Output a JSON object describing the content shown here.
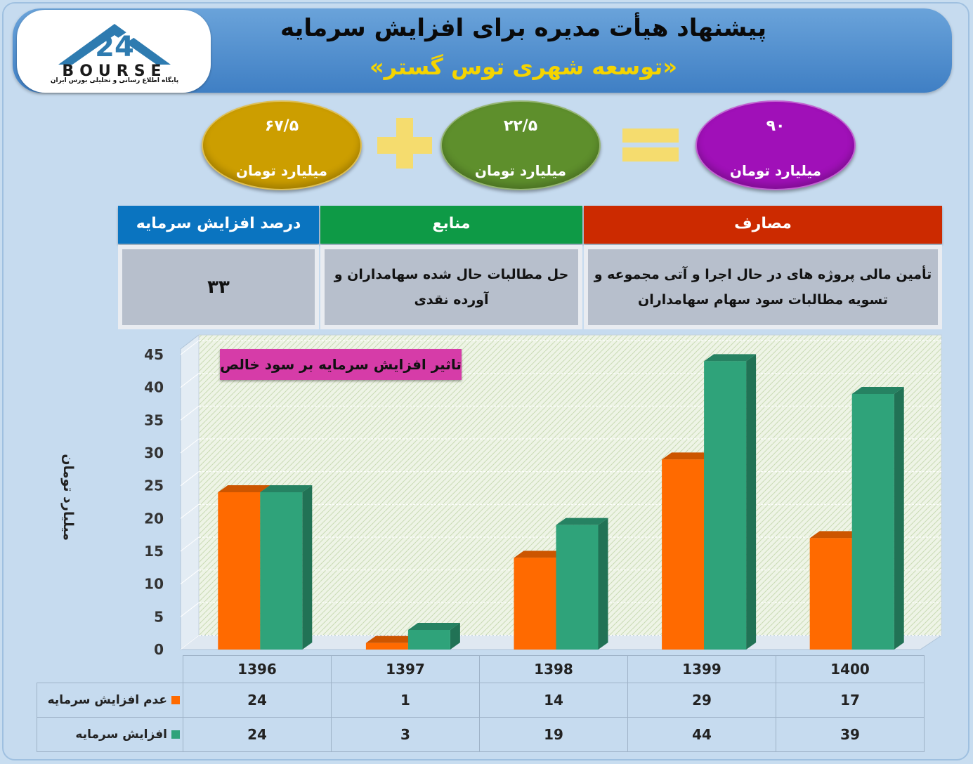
{
  "header": {
    "title": "پیشنهاد هیأت مدیره برای افزایش سرمایه",
    "subtitle": "«توسعه شهری توس گستر»",
    "logo_brand": "BOURSE",
    "logo_tagline": "پایگاه اطلاع رسانی و تحلیلی بورس ایران"
  },
  "equation": {
    "term1": {
      "value": "۶۷/۵",
      "unit": "میلیارد تومان",
      "color": "#cc9e00"
    },
    "term2": {
      "value": "۲۲/۵",
      "unit": "میلیارد تومان",
      "color": "#5e8f2c"
    },
    "total": {
      "value": "۹۰",
      "unit": "میلیارد تومان",
      "color": "#a010b8"
    }
  },
  "summary_table": {
    "headers": [
      {
        "label": "مصارف",
        "color": "#cc2a00"
      },
      {
        "label": "منابع",
        "color": "#0e9a46"
      },
      {
        "label": "درصد افزایش سرمایه",
        "color": "#0a74c0"
      }
    ],
    "uses": "تأمین مالی پروژه های در حال اجرا و آتی مجموعه و تسویه مطالبات سود سهام سهامداران",
    "sources": "حل مطالبات حال شده سهامداران و آورده نقدی",
    "percent": "۳۳"
  },
  "chart_data": {
    "type": "bar",
    "title": "تاثیر افزایش سرمایه بر سود خالص",
    "ylabel": "میلیارد تومان",
    "xlabel": "",
    "ylim": [
      0,
      45
    ],
    "yticks": [
      0,
      5,
      10,
      15,
      20,
      25,
      30,
      35,
      40,
      45
    ],
    "categories": [
      "1396",
      "1397",
      "1398",
      "1399",
      "1400"
    ],
    "series": [
      {
        "name": "عدم افزایش سرمایه",
        "values": [
          24,
          1,
          14,
          29,
          17
        ],
        "color": "#ff6a00"
      },
      {
        "name": "افزایش سرمایه",
        "values": [
          24,
          3,
          19,
          44,
          39
        ],
        "color": "#2fa37a"
      }
    ],
    "grid": true
  }
}
